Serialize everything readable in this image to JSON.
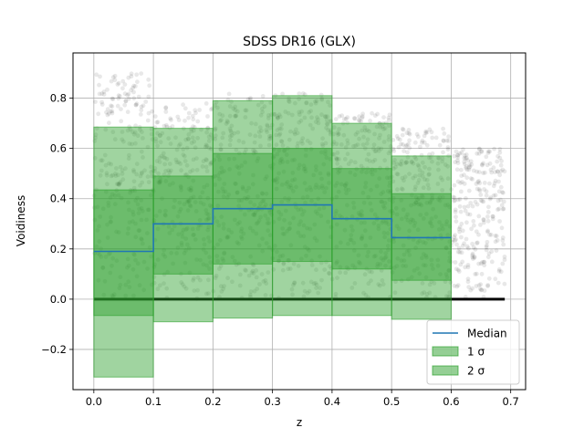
{
  "chart_data": {
    "type": "area",
    "title": "SDSS DR16 (GLX)",
    "xlabel": "z",
    "ylabel": "Voidiness",
    "xlim": [
      -0.035,
      0.725
    ],
    "ylim": [
      -0.36,
      0.98
    ],
    "xticks": [
      0.0,
      0.1,
      0.2,
      0.3,
      0.4,
      0.5,
      0.6,
      0.7
    ],
    "xtick_labels": [
      "0.0",
      "0.1",
      "0.2",
      "0.3",
      "0.4",
      "0.5",
      "0.6",
      "0.7"
    ],
    "yticks": [
      -0.2,
      0.0,
      0.2,
      0.4,
      0.6,
      0.8
    ],
    "ytick_labels": [
      "−0.2",
      "0.0",
      "0.2",
      "0.4",
      "0.6",
      "0.8"
    ],
    "grid": true,
    "legend_position": "lower right",
    "bins": [
      {
        "x0": 0.0,
        "x1": 0.1,
        "median": 0.19,
        "sigma1": [
          -0.065,
          0.435
        ],
        "sigma2": [
          -0.31,
          0.685
        ]
      },
      {
        "x0": 0.1,
        "x1": 0.2,
        "median": 0.3,
        "sigma1": [
          0.1,
          0.49
        ],
        "sigma2": [
          -0.09,
          0.68
        ]
      },
      {
        "x0": 0.2,
        "x1": 0.3,
        "median": 0.36,
        "sigma1": [
          0.14,
          0.58
        ],
        "sigma2": [
          -0.075,
          0.79
        ]
      },
      {
        "x0": 0.3,
        "x1": 0.4,
        "median": 0.375,
        "sigma1": [
          0.15,
          0.6
        ],
        "sigma2": [
          -0.065,
          0.81
        ]
      },
      {
        "x0": 0.4,
        "x1": 0.5,
        "median": 0.32,
        "sigma1": [
          0.12,
          0.52
        ],
        "sigma2": [
          -0.065,
          0.7
        ]
      },
      {
        "x0": 0.5,
        "x1": 0.6,
        "median": 0.245,
        "sigma1": [
          0.075,
          0.42
        ],
        "sigma2": [
          -0.08,
          0.57
        ]
      }
    ],
    "series": [
      {
        "name": "Median",
        "color": "#1f77b4"
      },
      {
        "name": "1 σ",
        "color": "#2ca02c"
      },
      {
        "name": "2 σ",
        "color": "#2ca02c"
      }
    ],
    "scatter": {
      "x_range": [
        0.0,
        0.69
      ],
      "color": "#000000",
      "note_zero_voidiness_line": 0.0,
      "density_profile": [
        {
          "x0": 0.0,
          "x1": 0.1,
          "y_max": 0.9
        },
        {
          "x0": 0.1,
          "x1": 0.2,
          "y_max": 0.78
        },
        {
          "x0": 0.2,
          "x1": 0.3,
          "y_max": 0.82
        },
        {
          "x0": 0.3,
          "x1": 0.4,
          "y_max": 0.82
        },
        {
          "x0": 0.4,
          "x1": 0.5,
          "y_max": 0.74
        },
        {
          "x0": 0.5,
          "x1": 0.6,
          "y_max": 0.68
        },
        {
          "x0": 0.6,
          "x1": 0.69,
          "y_max": 0.6
        }
      ]
    }
  }
}
